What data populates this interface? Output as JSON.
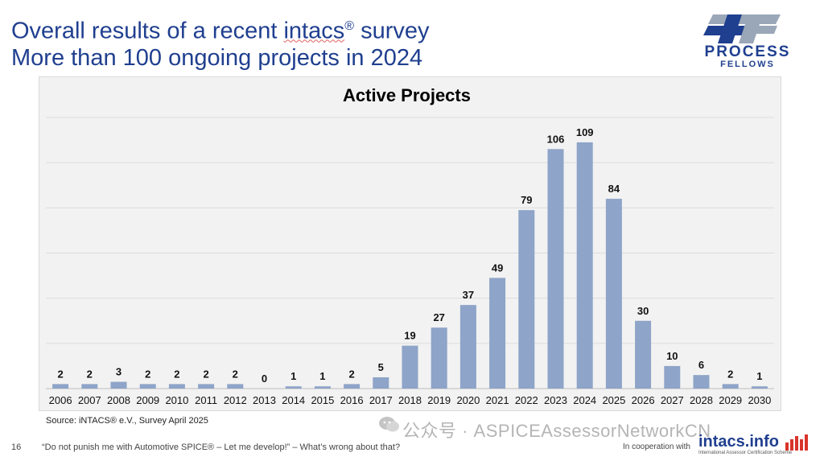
{
  "header": {
    "line1_prefix": "Overall results of a recent ",
    "line1_brand": "intacs",
    "line1_reg": "®",
    "line1_suffix": " survey",
    "line2": "More than 100 ongoing projects in 2024"
  },
  "logo": {
    "word1": "PROCESS",
    "word2": "FELLOWS",
    "mark": "PF"
  },
  "chart_data": {
    "type": "bar",
    "title": "Active Projects",
    "categories": [
      "2006",
      "2007",
      "2008",
      "2009",
      "2010",
      "2011",
      "2012",
      "2013",
      "2014",
      "2015",
      "2016",
      "2017",
      "2018",
      "2019",
      "2020",
      "2021",
      "2022",
      "2023",
      "2024",
      "2025",
      "2026",
      "2027",
      "2028",
      "2029",
      "2030"
    ],
    "values": [
      2,
      2,
      3,
      2,
      2,
      2,
      2,
      0,
      1,
      1,
      2,
      5,
      19,
      27,
      37,
      49,
      79,
      106,
      109,
      84,
      30,
      10,
      6,
      2,
      1
    ],
    "xlabel": "",
    "ylabel": "",
    "ylim": [
      0,
      120
    ],
    "grid": true,
    "bar_color": "#8ea4c8"
  },
  "source": "Source: iNTACS® e.V., Survey April 2025",
  "footer": {
    "page": "16",
    "quote": "“Do not punish me with Automotive SPICE® – Let me develop!” – What’s wrong about that?",
    "cooperation": "In cooperation with",
    "intacs": "intacs.info",
    "intacs_sub": "International Assessor Certification Scheme"
  },
  "watermark": "公众号 · ASPICEAssessorNetworkCN"
}
